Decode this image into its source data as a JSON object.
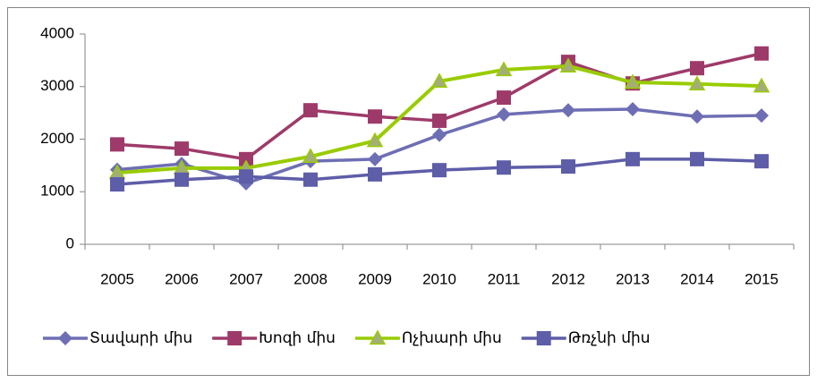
{
  "chart_data": {
    "type": "line",
    "categories": [
      "2005",
      "2006",
      "2007",
      "2008",
      "2009",
      "2010",
      "2011",
      "2012",
      "2013",
      "2014",
      "2015"
    ],
    "series": [
      {
        "name": "Տավարի միս",
        "color": "#6e6eb4",
        "marker": "diamond",
        "values": [
          1420,
          1530,
          1160,
          1580,
          1620,
          2080,
          2470,
          2550,
          2570,
          2430,
          2450
        ]
      },
      {
        "name": "Խոզի միս",
        "color": "#9e3a6a",
        "marker": "square",
        "values": [
          1900,
          1820,
          1620,
          2550,
          2430,
          2350,
          2790,
          3470,
          3060,
          3350,
          3630
        ]
      },
      {
        "name": "Ոչխարի միս",
        "color": "#99cc00",
        "marker": "triangle",
        "values": [
          1360,
          1450,
          1450,
          1670,
          1970,
          3100,
          3320,
          3390,
          3080,
          3050,
          3010
        ]
      },
      {
        "name": "Թռչնի միս",
        "color": "#5d5da8",
        "marker": "square",
        "values": [
          1140,
          1230,
          1290,
          1230,
          1330,
          1410,
          1460,
          1480,
          1620,
          1620,
          1580
        ]
      }
    ],
    "ylim": [
      0,
      4000
    ],
    "yticks": [
      0,
      1000,
      2000,
      3000,
      4000
    ],
    "grid": false,
    "legend": "bottom"
  }
}
